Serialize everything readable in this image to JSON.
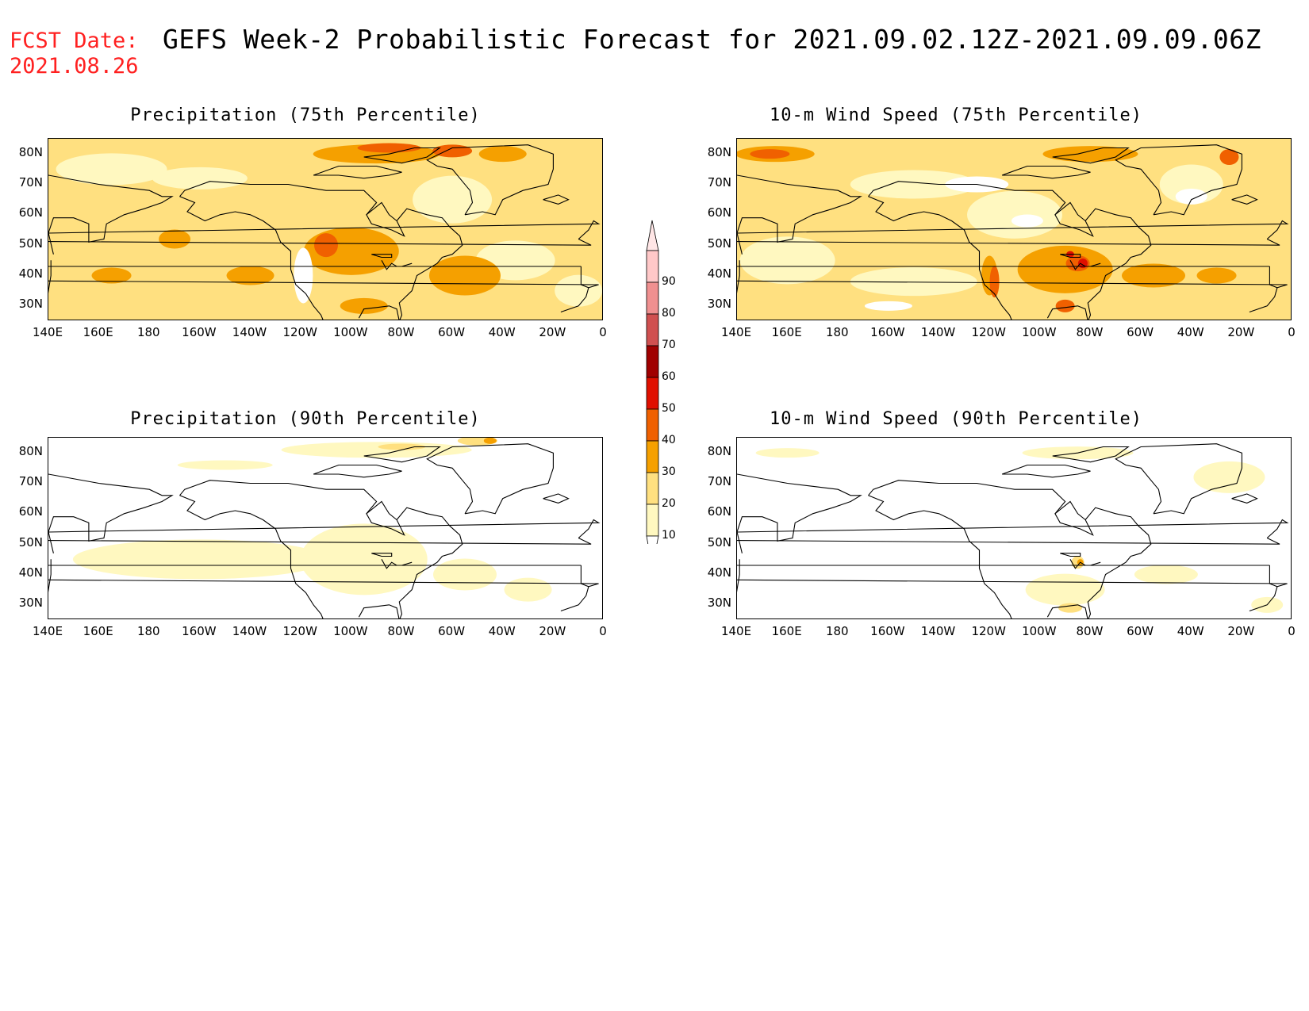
{
  "header": {
    "fcst_label": "FCST Date:",
    "fcst_date": "2021.08.26",
    "title": "GEFS Week-2 Probabilistic Forecast for 2021.09.02.12Z-2021.09.09.06Z"
  },
  "panels": [
    {
      "title": "Precipitation (75th Percentile)"
    },
    {
      "title": "10-m Wind Speed (75th Percentile)"
    },
    {
      "title": "Precipitation (90th Percentile)"
    },
    {
      "title": "10-m Wind Speed (90th Percentile)"
    }
  ],
  "axes": {
    "lat_labels": [
      "80N",
      "70N",
      "60N",
      "50N",
      "40N",
      "30N"
    ],
    "lon_labels": [
      "140E",
      "160E",
      "180",
      "160W",
      "140W",
      "120W",
      "100W",
      "80W",
      "60W",
      "40W",
      "20W",
      "0"
    ]
  },
  "colorbar": {
    "labels": [
      "90",
      "80",
      "70",
      "60",
      "50",
      "40",
      "30",
      "20",
      "10"
    ],
    "colors": [
      "#ffc8c8",
      "#f09090",
      "#d05050",
      "#a00000",
      "#e01000",
      "#f06000",
      "#f5a000",
      "#ffe080",
      "#fff8c0"
    ]
  }
}
